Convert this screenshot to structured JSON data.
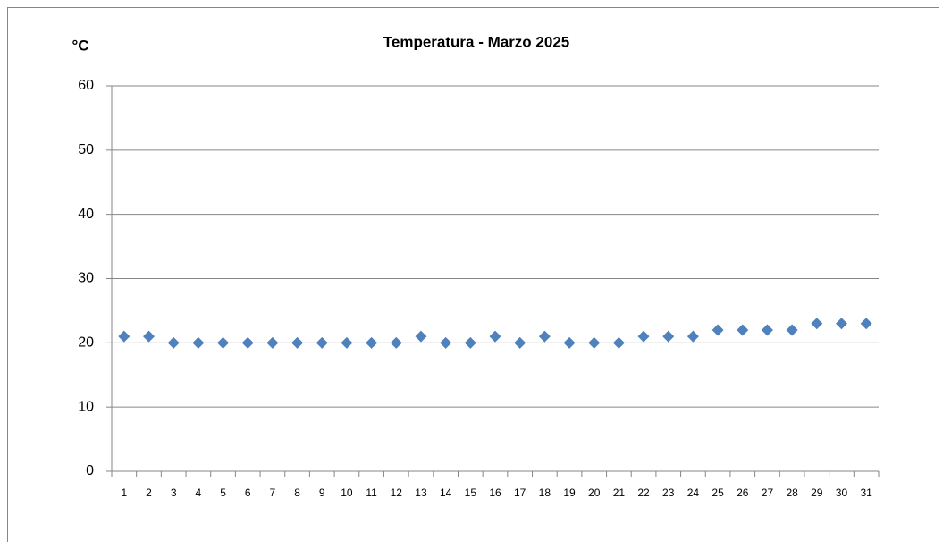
{
  "chart_data": {
    "type": "scatter",
    "title": "Temperatura - Marzo 2025",
    "y_label": "°C",
    "categories": [
      "1",
      "2",
      "3",
      "4",
      "5",
      "6",
      "7",
      "8",
      "9",
      "10",
      "11",
      "12",
      "13",
      "14",
      "15",
      "16",
      "17",
      "18",
      "19",
      "20",
      "21",
      "22",
      "23",
      "24",
      "25",
      "26",
      "27",
      "28",
      "29",
      "30",
      "31"
    ],
    "values": [
      21,
      21,
      20,
      20,
      20,
      20,
      20,
      20,
      20,
      20,
      20,
      20,
      21,
      20,
      20,
      21,
      20,
      21,
      20,
      20,
      20,
      21,
      21,
      21,
      22,
      22,
      22,
      22,
      23,
      23,
      23
    ],
    "color": "#4f81bd",
    "marker": "diamond",
    "ylim": [
      0,
      60
    ],
    "yticks": [
      0,
      10,
      20,
      30,
      40,
      50,
      60
    ],
    "grid": true
  }
}
